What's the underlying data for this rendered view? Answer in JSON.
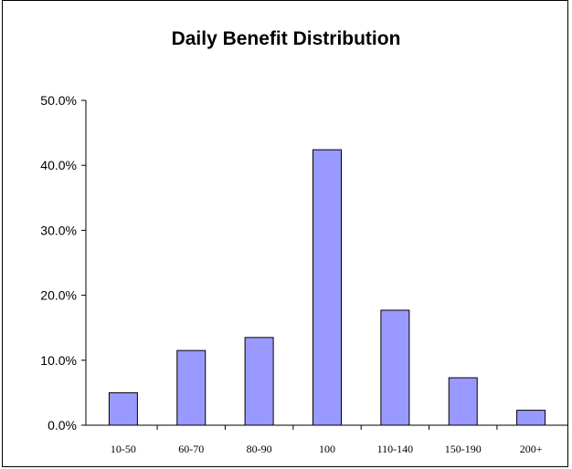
{
  "chart_data": {
    "type": "bar",
    "title": "Daily Benefit Distribution",
    "xlabel": "",
    "ylabel": "",
    "categories": [
      "10-50",
      "60-70",
      "80-90",
      "100",
      "110-140",
      "150-190",
      "200+"
    ],
    "values": [
      5.0,
      11.5,
      13.5,
      42.4,
      17.7,
      7.3,
      2.3
    ],
    "ylim": [
      0,
      50
    ],
    "y_ticks": [
      0,
      10,
      20,
      30,
      40,
      50
    ],
    "y_tick_labels": [
      "0.0%",
      "10.0%",
      "20.0%",
      "30.0%",
      "40.0%",
      "50.0%"
    ],
    "grid": false,
    "legend": "none",
    "bar_color": "#9999ff",
    "bar_edge_color": "#000000"
  }
}
